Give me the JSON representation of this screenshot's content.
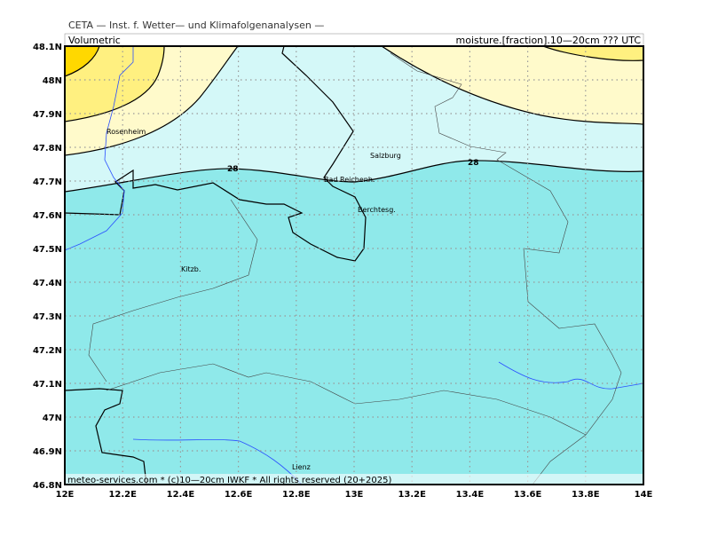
{
  "header": {
    "title": "CETA — Inst. f. Wetter— und Klimafolgenanalysen —",
    "left_label": "Volumetric",
    "right_label": "moisture.[fraction].10—20cm ??? UTC"
  },
  "footer": "meteo-services.com * (c)10—20cm IWKF * All rights reserved (20+2025)",
  "axes": {
    "x_ticks": [
      "12E",
      "12.2E",
      "12.4E",
      "12.6E",
      "12.8E",
      "13E",
      "13.2E",
      "13.4E",
      "13.6E",
      "13.8E",
      "14E"
    ],
    "y_ticks": [
      "48.1N",
      "48N",
      "47.9N",
      "47.8N",
      "47.7N",
      "47.6N",
      "47.5N",
      "47.4N",
      "47.3N",
      "47.2N",
      "47.1N",
      "47N",
      "46.9N",
      "46.8N"
    ]
  },
  "places": [
    "Rosenheim",
    "Salzburg",
    "Bad Reichenh.",
    "Berchtesg.",
    "Kitzb.",
    "Lienz"
  ],
  "contour_labels": [
    "28",
    "28"
  ]
}
